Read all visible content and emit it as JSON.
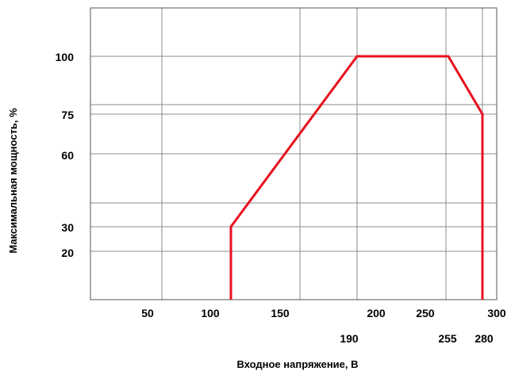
{
  "chart_data": {
    "type": "line",
    "title": "",
    "xlabel": "Входное напряжение, В",
    "ylabel": "Максимальная мощность, %",
    "series": [
      {
        "x": [
          112,
          112,
          190,
          255,
          280,
          280
        ],
        "y": [
          0,
          30,
          100,
          100,
          75,
          0
        ],
        "color": "#e8101e"
      }
    ],
    "x_ticks_top_row": [
      "50",
      "100",
      "150",
      "200",
      "250",
      "300"
    ],
    "x_ticks_bottom_row": [
      "190",
      "255",
      "280"
    ],
    "y_ticks": [
      "100",
      "75",
      "60",
      "30",
      "20"
    ],
    "grid": true,
    "colors": {
      "line": "#e8101e",
      "grid": "#8c8c8c",
      "frame": "#555555"
    }
  }
}
